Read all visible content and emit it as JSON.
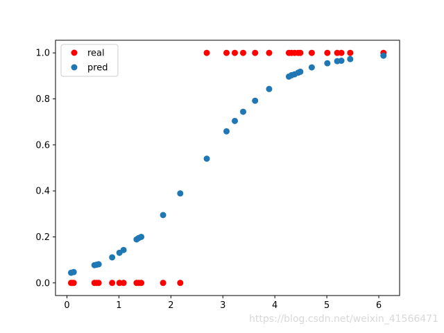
{
  "chart_data": {
    "type": "scatter",
    "title": "",
    "xlabel": "",
    "ylabel": "",
    "xlim": [
      -0.22,
      6.4
    ],
    "ylim": [
      -0.055,
      1.055
    ],
    "xticks": [
      0,
      1,
      2,
      3,
      4,
      5,
      6
    ],
    "yticks": [
      0.0,
      0.2,
      0.4,
      0.6,
      0.8,
      1.0
    ],
    "xtick_labels": [
      "0",
      "1",
      "2",
      "3",
      "4",
      "5",
      "6"
    ],
    "ytick_labels": [
      "0.0",
      "0.2",
      "0.4",
      "0.6",
      "0.8",
      "1.0"
    ],
    "grid": false,
    "legend_position": "top-left",
    "series": [
      {
        "name": "real",
        "color": "#ff0000",
        "x": [
          0.08,
          0.1,
          0.13,
          0.53,
          0.57,
          0.61,
          0.87,
          1.01,
          1.09,
          1.34,
          1.38,
          1.43,
          1.85,
          2.18,
          2.69,
          3.07,
          3.23,
          3.39,
          3.62,
          3.89,
          4.27,
          4.32,
          4.38,
          4.45,
          4.49,
          4.71,
          5.01,
          5.2,
          5.28,
          5.45,
          6.09
        ],
        "y": [
          0,
          0,
          0,
          0,
          0,
          0,
          0,
          0,
          0,
          0,
          0,
          0,
          0,
          0,
          1,
          1,
          1,
          1,
          1,
          1,
          1,
          1,
          1,
          1,
          1,
          1,
          1,
          1,
          1,
          1,
          1
        ]
      },
      {
        "name": "pred",
        "color": "#1f77b4",
        "x": [
          0.08,
          0.13,
          0.53,
          0.57,
          0.61,
          0.87,
          1.01,
          1.09,
          1.34,
          1.38,
          1.43,
          1.85,
          2.18,
          2.69,
          3.07,
          3.23,
          3.39,
          3.62,
          3.89,
          4.27,
          4.32,
          4.38,
          4.45,
          4.49,
          4.71,
          5.01,
          5.2,
          5.28,
          5.45,
          6.09
        ],
        "y": [
          0.044,
          0.047,
          0.077,
          0.079,
          0.081,
          0.111,
          0.131,
          0.143,
          0.189,
          0.195,
          0.2,
          0.295,
          0.389,
          0.54,
          0.659,
          0.704,
          0.744,
          0.792,
          0.843,
          0.897,
          0.903,
          0.907,
          0.914,
          0.918,
          0.937,
          0.955,
          0.964,
          0.966,
          0.973,
          0.988
        ]
      }
    ]
  },
  "watermark": "https://blog.csdn.net/weixin_41566471"
}
